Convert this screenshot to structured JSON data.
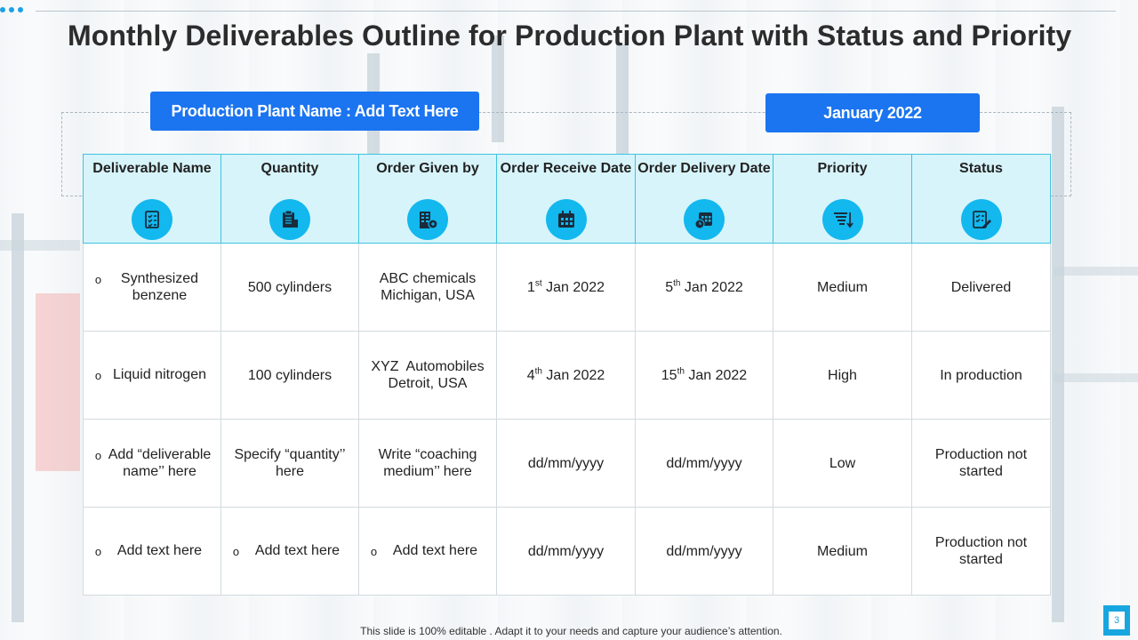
{
  "slide": {
    "title": "Monthly Deliverables Outline for Production Plant with Status and Priority",
    "plant_label": "Production Plant Name : Add Text Here",
    "period_label": "January 2022",
    "footer": "This slide is 100% editable . Adapt it to your needs and capture your audience’s attention.",
    "page_number": "3"
  },
  "table": {
    "headers": [
      {
        "label": "Deliverable Name",
        "icon": "checklist-icon"
      },
      {
        "label": "Quantity",
        "icon": "clipboard-icon"
      },
      {
        "label": "Order Given by",
        "icon": "building-icon"
      },
      {
        "label": "Order Receive Date",
        "icon": "calendar-icon"
      },
      {
        "label": "Order Delivery Date",
        "icon": "calendar-clock-icon"
      },
      {
        "label": "Priority",
        "icon": "sort-priority-icon"
      },
      {
        "label": "Status",
        "icon": "status-edit-icon"
      }
    ],
    "rows": [
      {
        "deliverable": "Synthesized benzene",
        "quantity": "500 cylinders",
        "order_by_line1": "ABC chemicals",
        "order_by_line2": "Michigan, USA",
        "receive_day": "1",
        "receive_suffix": "st",
        "receive_rest": " Jan 2022",
        "delivery_day": "5",
        "delivery_suffix": "th",
        "delivery_rest": " Jan 2022",
        "priority": "Medium",
        "status": "Delivered"
      },
      {
        "deliverable": "Liquid nitrogen",
        "quantity": "100 cylinders",
        "order_by_line1": "XYZ  Automobiles",
        "order_by_line2": "Detroit, USA",
        "receive_day": "4",
        "receive_suffix": "th",
        "receive_rest": " Jan 2022",
        "delivery_day": "15",
        "delivery_suffix": "th",
        "delivery_rest": " Jan 2022",
        "priority": "High",
        "status": "In production"
      },
      {
        "deliverable": "Add “deliverable name’’ here",
        "quantity": "Specify “quantity’’ here",
        "order_by": "Write “coaching medium’’ here",
        "receive": "dd/mm/yyyy",
        "delivery": "dd/mm/yyyy",
        "priority": "Low",
        "status": "Production not started"
      },
      {
        "deliverable": "Add text here",
        "quantity": "Add text here",
        "order_by": "Add text here",
        "receive": "dd/mm/yyyy",
        "delivery": "dd/mm/yyyy",
        "priority": "Medium",
        "status": "Production not started"
      }
    ],
    "bullet_glyph": "o"
  },
  "colors": {
    "accent_blue": "#1b74f0",
    "header_bg": "#d7f4fb",
    "icon_bg": "#12b8ee",
    "medium": "#fddb70",
    "high": "#fc6060",
    "low": "#76b24a"
  }
}
